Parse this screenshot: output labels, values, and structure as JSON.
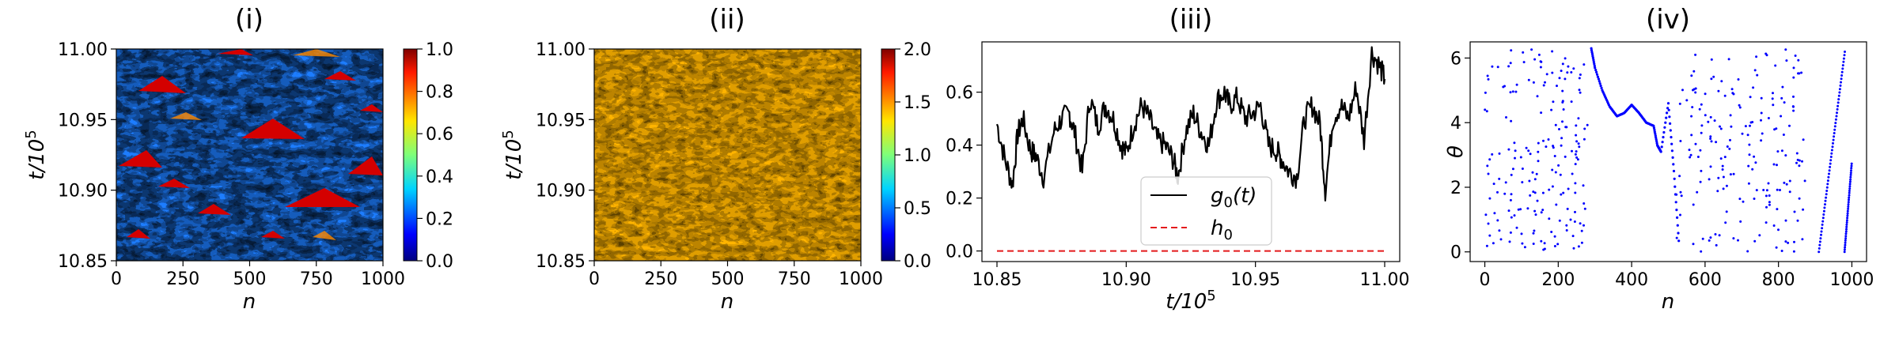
{
  "figure": {
    "panel_count": 4
  },
  "chart_data": [
    {
      "panel": "(i)",
      "type": "heatmap",
      "title": "(i)",
      "xlabel": "n",
      "ylabel": "t/10",
      "ylabel_exponent": "5",
      "xlim": [
        0,
        1000
      ],
      "ylim": [
        10.85,
        11.0
      ],
      "x_ticks": [
        "0",
        "250",
        "500",
        "750",
        "1000"
      ],
      "y_ticks": [
        "10.85",
        "10.90",
        "10.95",
        "11.00"
      ],
      "colormap": "jet",
      "colorbar_range": [
        0.0,
        1.0
      ],
      "colorbar_ticks": [
        "0.0",
        "0.2",
        "0.4",
        "0.6",
        "0.8",
        "1.0"
      ],
      "pattern": "spatiotemporal chaos: mostly blue-green background with scattered red triangular structures"
    },
    {
      "panel": "(ii)",
      "type": "heatmap",
      "title": "(ii)",
      "xlabel": "n",
      "ylabel": "t/10",
      "ylabel_exponent": "5",
      "xlim": [
        0,
        1000
      ],
      "ylim": [
        10.85,
        11.0
      ],
      "x_ticks": [
        "0",
        "250",
        "500",
        "750",
        "1000"
      ],
      "y_ticks": [
        "10.85",
        "10.90",
        "10.95",
        "11.00"
      ],
      "colormap": "jet",
      "colorbar_range": [
        0.0,
        2.0
      ],
      "colorbar_ticks": [
        "0.0",
        "0.5",
        "1.0",
        "1.5",
        "2.0"
      ],
      "pattern": "nearly uniform orange field (~1.5) with fine yellow-green speckles"
    },
    {
      "panel": "(iii)",
      "type": "line",
      "title": "(iii)",
      "xlabel": "t/10",
      "xlabel_exponent": "5",
      "xlim": [
        10.85,
        11.0
      ],
      "ylim": [
        -0.04,
        0.79
      ],
      "x_ticks": [
        "10.85",
        "10.90",
        "10.95",
        "11.00"
      ],
      "y_ticks": [
        "0.0",
        "0.2",
        "0.4",
        "0.6"
      ],
      "legend": {
        "placement": "lower-center",
        "entries": [
          "g0(t)",
          "h0"
        ]
      },
      "series": [
        {
          "name": "g0(t)",
          "color": "#000000",
          "x": [
            10.85,
            10.853,
            10.856,
            10.858,
            10.86,
            10.863,
            10.865,
            10.868,
            10.872,
            10.875,
            10.878,
            10.88,
            10.883,
            10.886,
            10.889,
            10.892,
            10.895,
            10.898,
            10.9,
            10.903,
            10.906,
            10.909,
            10.912,
            10.915,
            10.918,
            10.92,
            10.923,
            10.926,
            10.929,
            10.932,
            10.935,
            10.938,
            10.94,
            10.943,
            10.946,
            10.949,
            10.952,
            10.955,
            10.958,
            10.96,
            10.963,
            10.966,
            10.969,
            10.972,
            10.975,
            10.977,
            10.98,
            10.983,
            10.986,
            10.989,
            10.992,
            10.995,
            10.998,
            11.0
          ],
          "y": [
            0.48,
            0.35,
            0.25,
            0.44,
            0.5,
            0.38,
            0.36,
            0.28,
            0.45,
            0.5,
            0.52,
            0.45,
            0.3,
            0.58,
            0.47,
            0.55,
            0.5,
            0.4,
            0.37,
            0.48,
            0.55,
            0.5,
            0.42,
            0.4,
            0.35,
            0.28,
            0.45,
            0.52,
            0.45,
            0.4,
            0.57,
            0.6,
            0.55,
            0.58,
            0.5,
            0.52,
            0.55,
            0.4,
            0.38,
            0.35,
            0.3,
            0.28,
            0.5,
            0.55,
            0.48,
            0.23,
            0.5,
            0.55,
            0.5,
            0.62,
            0.42,
            0.75,
            0.7,
            0.65
          ]
        },
        {
          "name": "h0",
          "color": "#e41a1c",
          "style": "dashed",
          "x": [
            10.85,
            11.0
          ],
          "y": [
            0.0,
            0.0
          ]
        }
      ]
    },
    {
      "panel": "(iv)",
      "type": "scatter",
      "title": "(iv)",
      "xlabel": "n",
      "ylabel": "θ",
      "xlim": [
        -40,
        1040
      ],
      "ylim": [
        -0.3,
        6.5
      ],
      "x_ticks": [
        "0",
        "200",
        "400",
        "600",
        "800",
        "1000"
      ],
      "y_ticks": [
        "0",
        "2",
        "4",
        "6"
      ],
      "color": "#0000ff",
      "series": [
        {
          "name": "theta_n",
          "x": [
            290,
            300,
            320,
            340,
            360,
            380,
            400,
            420,
            440,
            460,
            470,
            480,
            500,
            515,
            530
          ],
          "y": [
            6.3,
            5.7,
            5.0,
            4.5,
            4.2,
            4.3,
            4.55,
            4.3,
            4.0,
            3.9,
            3.3,
            3.1,
            4.6,
            2.5,
            0.1
          ]
        }
      ]
    }
  ]
}
